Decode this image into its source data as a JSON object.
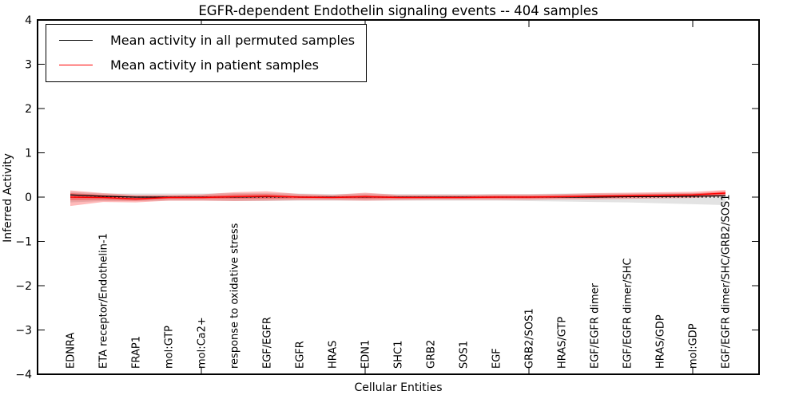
{
  "title": "EGFR-dependent Endothelin signaling events -- 404 samples",
  "xlabel": "Cellular Entities",
  "ylabel": "Inferred Activity",
  "legend": {
    "items": [
      {
        "label": "Mean activity in all permuted samples",
        "color": "#000000"
      },
      {
        "label": "Mean activity in patient samples",
        "color": "#ff0000"
      }
    ]
  },
  "colors": {
    "permuted_line": "#000000",
    "patient_line": "#ff0000",
    "permuted_band": "#aaaaaa",
    "patient_band": "#ff0000",
    "zero_line": "#000000",
    "axis": "#000000"
  },
  "chart_data": {
    "type": "line",
    "title": "EGFR-dependent Endothelin signaling events -- 404 samples",
    "xlabel": "Cellular Entities",
    "ylabel": "Inferred Activity",
    "ylim": [
      -4,
      4
    ],
    "grid": false,
    "legend_position": "upper left",
    "zero_line": true,
    "categories": [
      "EDNRA",
      "ETA receptor/Endothelin-1",
      "FRAP1",
      "mol:GTP",
      "mol:Ca2+",
      "response to oxidative stress",
      "EGF/EGFR",
      "EGFR",
      "HRAS",
      "EDN1",
      "SHC1",
      "GRB2",
      "SOS1",
      "EGF",
      "GRB2/SOS1",
      "HRAS/GTP",
      "EGF/EGFR dimer",
      "EGF/EGFR dimer/SHC",
      "HRAS/GDP",
      "mol:GDP",
      "EGF/EGFR dimer/SHC/GRB2/SOS1"
    ],
    "series": [
      {
        "name": "Mean activity in all permuted samples",
        "color": "#000000",
        "values": [
          0.05,
          0.02,
          0.0,
          0.0,
          0.0,
          0.0,
          0.01,
          0.0,
          0.0,
          0.0,
          0.0,
          0.0,
          0.0,
          0.0,
          0.0,
          0.0,
          0.0,
          0.01,
          0.01,
          0.02,
          0.03
        ]
      },
      {
        "name": "Mean activity in patient samples",
        "color": "#ff0000",
        "values": [
          0.0,
          -0.01,
          -0.04,
          -0.01,
          -0.01,
          0.01,
          0.02,
          0.0,
          -0.01,
          0.01,
          -0.01,
          -0.01,
          -0.01,
          0.0,
          0.0,
          0.01,
          0.02,
          0.03,
          0.04,
          0.05,
          0.09
        ]
      }
    ],
    "bands": [
      {
        "name": "permuted-std-band",
        "color": "#999999",
        "opacity": 0.28,
        "upper": [
          0.12,
          0.08,
          0.08,
          0.08,
          0.08,
          0.09,
          0.09,
          0.08,
          0.07,
          0.08,
          0.07,
          0.07,
          0.07,
          0.07,
          0.07,
          0.08,
          0.08,
          0.08,
          0.09,
          0.09,
          0.09
        ],
        "lower": [
          -0.12,
          -0.09,
          -0.09,
          -0.08,
          -0.08,
          -0.09,
          -0.09,
          -0.08,
          -0.08,
          -0.08,
          -0.08,
          -0.08,
          -0.08,
          -0.08,
          -0.09,
          -0.1,
          -0.11,
          -0.12,
          -0.14,
          -0.16,
          -0.18
        ]
      },
      {
        "name": "patient-std-band-outer",
        "color": "#ff0000",
        "opacity": 0.27,
        "upper": [
          0.15,
          0.09,
          0.05,
          0.05,
          0.06,
          0.11,
          0.13,
          0.07,
          0.05,
          0.1,
          0.05,
          0.05,
          0.05,
          0.06,
          0.06,
          0.07,
          0.09,
          0.1,
          0.11,
          0.12,
          0.16
        ],
        "lower": [
          -0.2,
          -0.11,
          -0.12,
          -0.08,
          -0.08,
          -0.09,
          -0.08,
          -0.07,
          -0.07,
          -0.08,
          -0.07,
          -0.06,
          -0.06,
          -0.06,
          -0.06,
          -0.05,
          -0.05,
          -0.04,
          -0.03,
          -0.02,
          0.02
        ]
      },
      {
        "name": "patient-std-band-inner",
        "color": "#ff0000",
        "opacity": 0.3,
        "upper": [
          0.09,
          0.05,
          0.02,
          0.02,
          0.03,
          0.06,
          0.07,
          0.03,
          0.02,
          0.05,
          0.02,
          0.02,
          0.02,
          0.03,
          0.03,
          0.04,
          0.05,
          0.06,
          0.07,
          0.08,
          0.13
        ],
        "lower": [
          -0.07,
          -0.06,
          -0.08,
          -0.04,
          -0.04,
          -0.04,
          -0.04,
          -0.03,
          -0.03,
          -0.04,
          -0.03,
          -0.03,
          -0.03,
          -0.03,
          -0.03,
          -0.02,
          -0.02,
          -0.01,
          0.0,
          0.01,
          0.05
        ]
      }
    ],
    "yticks": [
      {
        "label": "4",
        "value": 4
      },
      {
        "label": "3",
        "value": 3
      },
      {
        "label": "2",
        "value": 2
      },
      {
        "label": "1",
        "value": 1
      },
      {
        "label": "0",
        "value": 0
      },
      {
        "label": "−1",
        "value": -1
      },
      {
        "label": "−2",
        "value": -2
      },
      {
        "label": "−3",
        "value": -3
      },
      {
        "label": "−4",
        "value": -4
      }
    ],
    "xtick_indices": [
      4,
      9,
      14,
      19
    ]
  }
}
